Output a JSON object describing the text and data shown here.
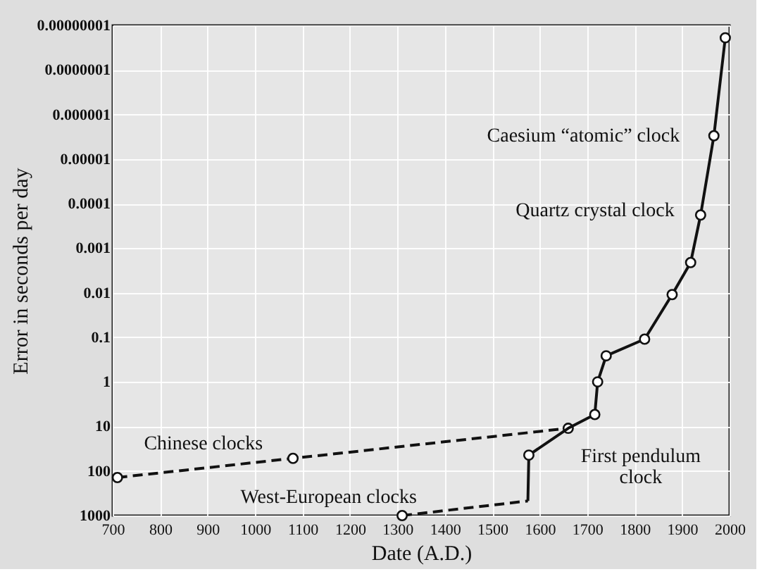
{
  "chart_data": {
    "type": "line",
    "xlabel": "Date (A.D.)",
    "ylabel": "Error in seconds per day",
    "xlim": [
      700,
      2000
    ],
    "xticks": [
      700,
      800,
      900,
      1000,
      1100,
      1200,
      1300,
      1400,
      1500,
      1600,
      1700,
      1800,
      1900,
      2000
    ],
    "ylim": [
      1000,
      1e-08
    ],
    "log": "y",
    "yticks": [
      {
        "value": 1e-08,
        "label": "0.00000001"
      },
      {
        "value": 1e-07,
        "label": "0.0000001"
      },
      {
        "value": 1e-06,
        "label": "0.000001"
      },
      {
        "value": 1e-05,
        "label": "0.00001"
      },
      {
        "value": 0.0001,
        "label": "0.0001"
      },
      0.001,
      0.01,
      0.1,
      1,
      10,
      100,
      1000
    ],
    "grid": true,
    "marker": "circle",
    "series": [
      {
        "color": "#111111",
        "line_style": "dashed",
        "x": [
          710,
          1080,
          1660
        ],
        "values": [
          140,
          52,
          11
        ]
      },
      {
        "color": "#111111",
        "line_style": "dashed",
        "marker": "none",
        "x": [
          1310,
          1575
        ],
        "values": [
          1000,
          470
        ]
      },
      {
        "color": "#111111",
        "line_style": "solid",
        "marker": "none",
        "x": [
          1575,
          1577,
          1660,
          1716,
          1722,
          1740,
          1821,
          1879,
          1918,
          1939,
          1967,
          1991
        ],
        "values": [
          470,
          44,
          11,
          5.4,
          1,
          0.26,
          0.11,
          0.011,
          0.0021,
          0.00018,
          3e-06,
          1.9e-08
        ]
      },
      {
        "type": "scatter",
        "color": "#111111",
        "x": [
          1310,
          1577,
          1716,
          1722,
          1740,
          1821,
          1879,
          1918,
          1939,
          1967,
          1991
        ],
        "values": [
          1000,
          44,
          5.4,
          1,
          0.26,
          0.11,
          0.011,
          0.0021,
          0.00018,
          3e-06,
          1.9e-08
        ]
      }
    ],
    "annotations": [
      "Chinese clocks",
      "West-European clocks",
      "First pendulum\nclock",
      "Quartz crystal clock",
      "Caesium “atomic” clock"
    ]
  }
}
